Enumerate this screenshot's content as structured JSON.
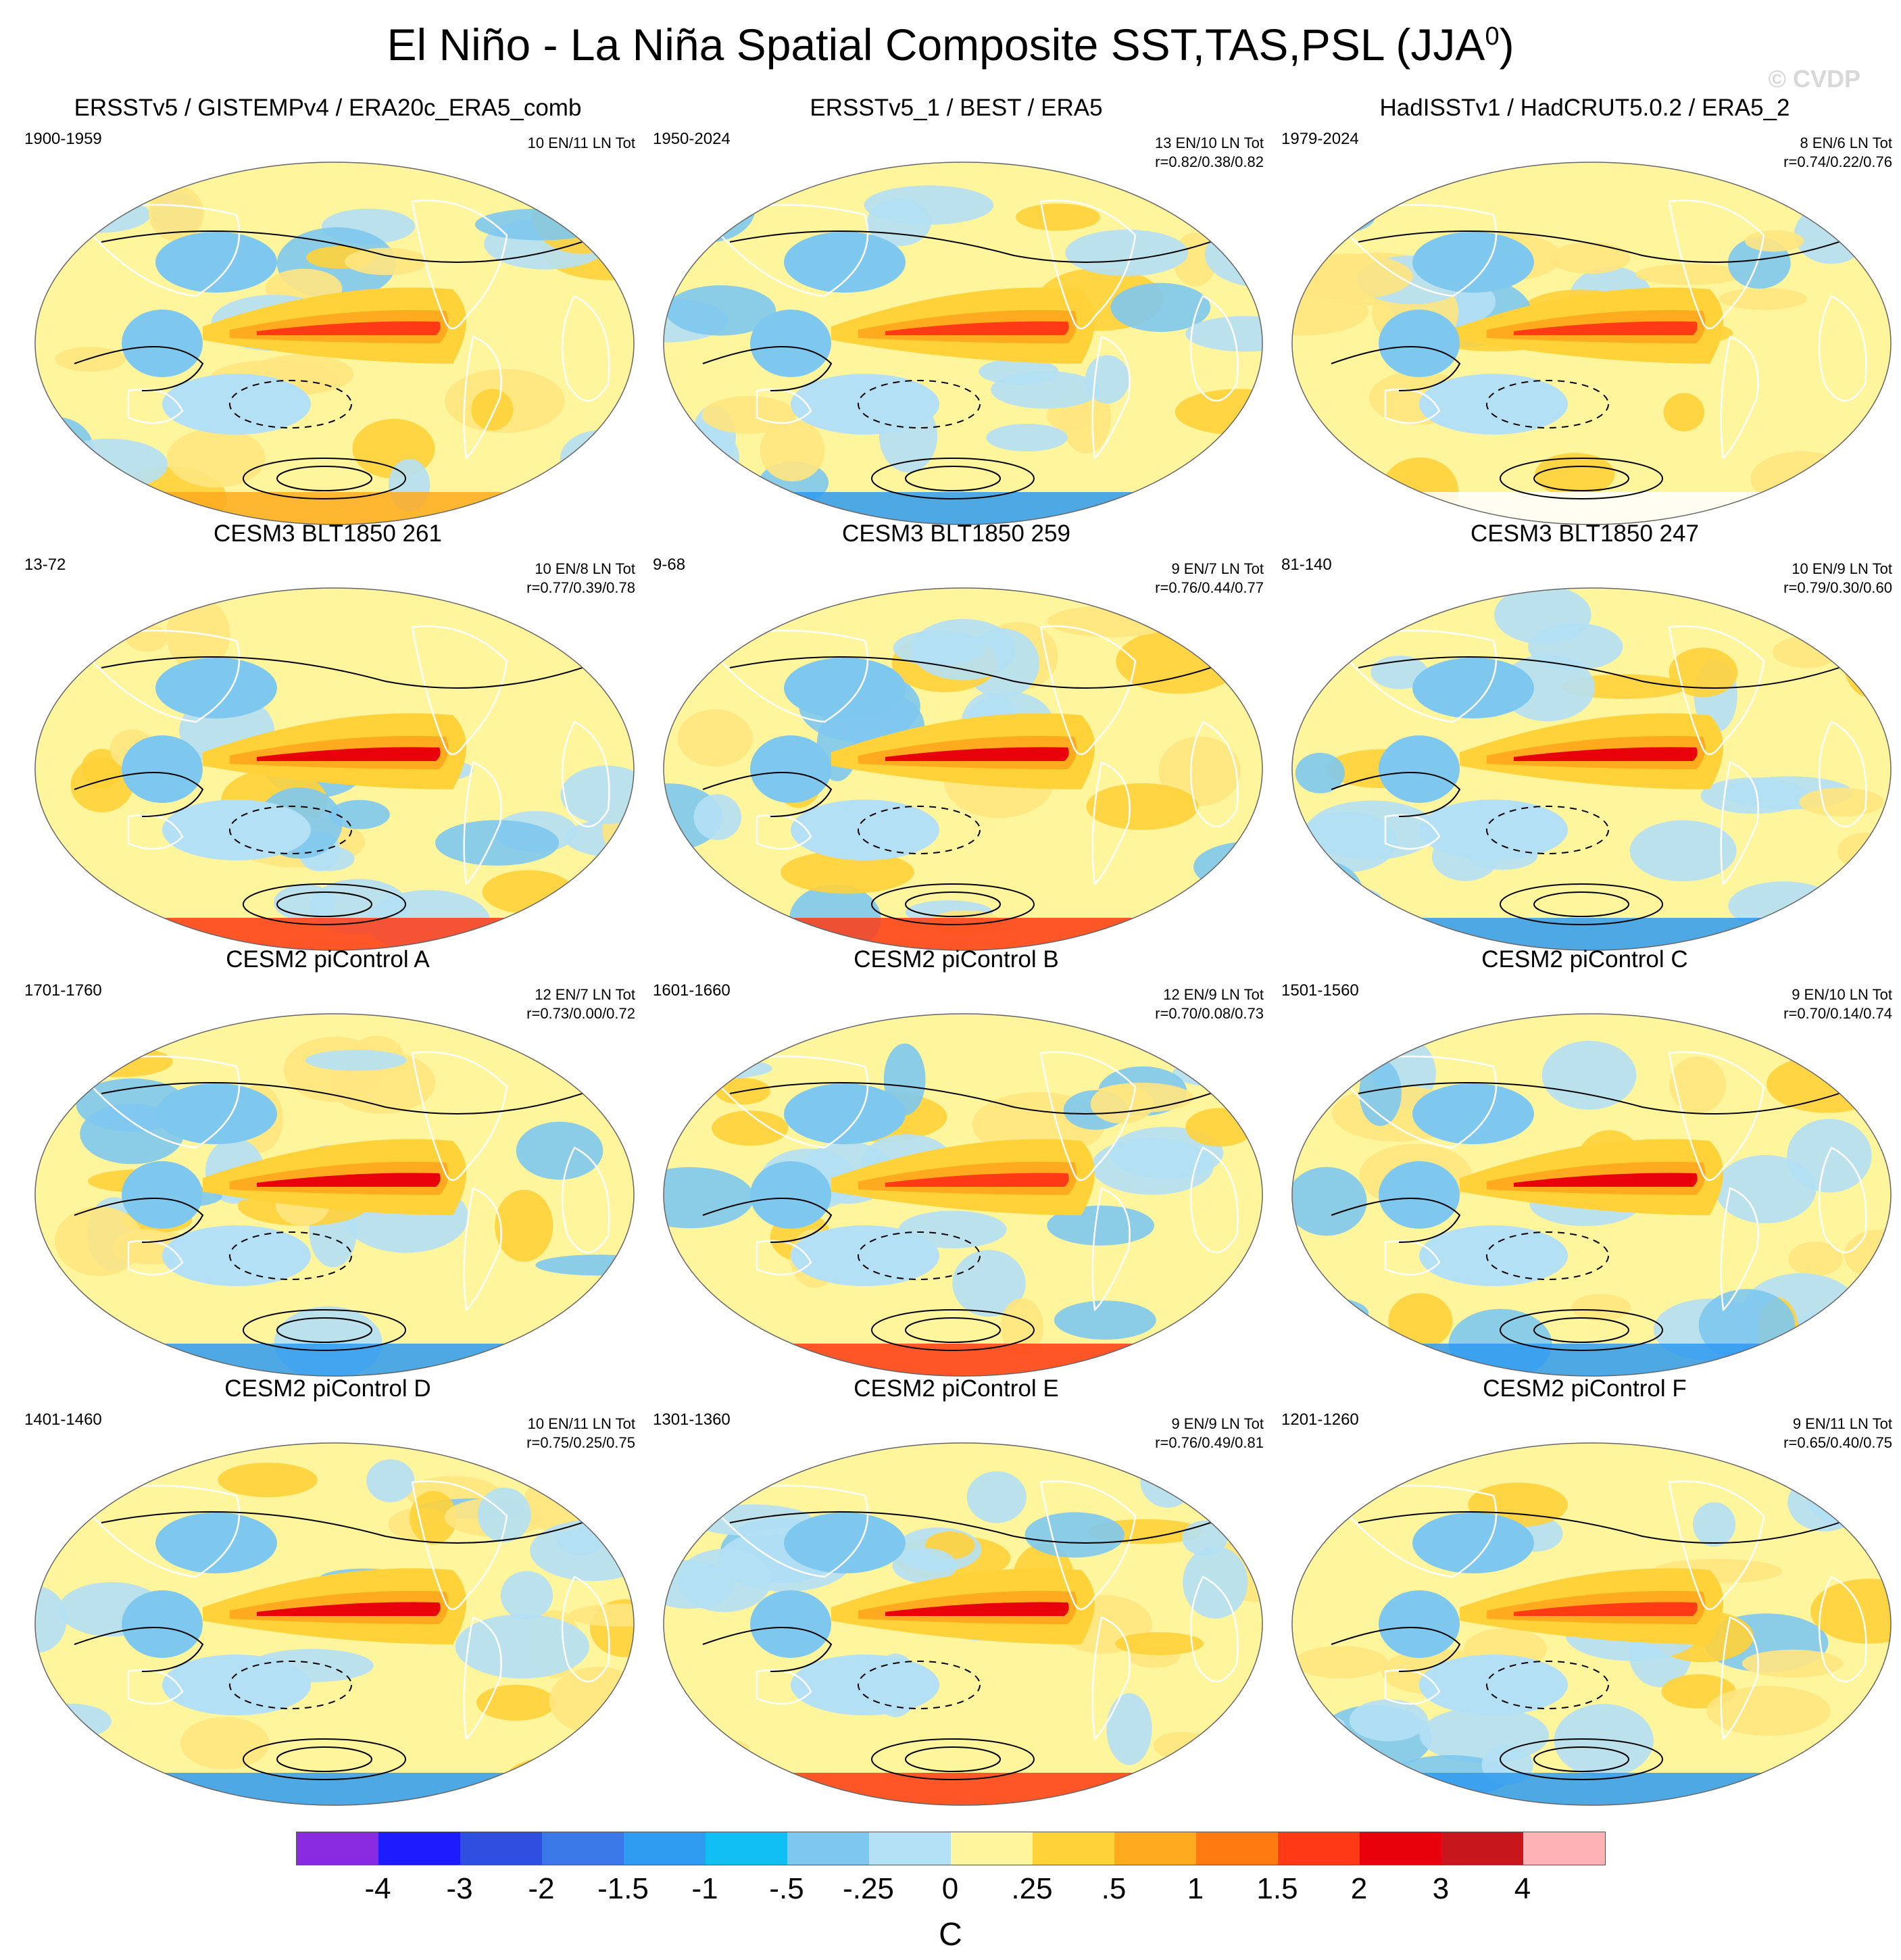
{
  "figure": {
    "title": "El Niño - La Niña Spatial Composite SST,TAS,PSL (JJA",
    "title_sup": "0",
    "title_close": ")",
    "watermark": "© CVDP"
  },
  "panels": [
    {
      "title": "ERSSTv5 / GISTEMPv4 / ERA20c_ERA5_comb",
      "period": "1900-1959",
      "counts": "10 EN/11 LN Tot",
      "r": "",
      "polar_band": "mixed",
      "nino_strength": 0.75
    },
    {
      "title": "ERSSTv5_1 / BEST / ERA5",
      "period": "1950-2024",
      "counts": "13 EN/10 LN Tot",
      "r": "r=0.82/0.38/0.82",
      "polar_band": "cool",
      "nino_strength": 0.8
    },
    {
      "title": "HadISSTv1 / HadCRUT5.0.2 / ERA5_2",
      "period": "1979-2024",
      "counts": "8 EN/6 LN Tot",
      "r": "r=0.74/0.22/0.76",
      "polar_band": "white",
      "nino_strength": 0.85
    },
    {
      "title": "CESM3 BLT1850 261",
      "period": "13-72",
      "counts": "10 EN/8 LN Tot",
      "r": "r=0.77/0.39/0.78",
      "polar_band": "warm",
      "nino_strength": 1.0
    },
    {
      "title": "CESM3 BLT1850 259",
      "period": "9-68",
      "counts": "9 EN/7 LN Tot",
      "r": "r=0.76/0.44/0.77",
      "polar_band": "warm",
      "nino_strength": 1.0
    },
    {
      "title": "CESM3 BLT1850 247",
      "period": "81-140",
      "counts": "10 EN/9 LN Tot",
      "r": "r=0.79/0.30/0.60",
      "polar_band": "cool",
      "nino_strength": 1.0
    },
    {
      "title": "CESM2 piControl A",
      "period": "1701-1760",
      "counts": "12 EN/7 LN Tot",
      "r": "r=0.73/0.00/0.72",
      "polar_band": "cool",
      "nino_strength": 0.95
    },
    {
      "title": "CESM2 piControl B",
      "period": "1601-1660",
      "counts": "12 EN/9 LN Tot",
      "r": "r=0.70/0.08/0.73",
      "polar_band": "warm",
      "nino_strength": 0.9
    },
    {
      "title": "CESM2 piControl C",
      "period": "1501-1560",
      "counts": "9 EN/10 LN Tot",
      "r": "r=0.70/0.14/0.74",
      "polar_band": "cool",
      "nino_strength": 1.0
    },
    {
      "title": "CESM2 piControl D",
      "period": "1401-1460",
      "counts": "10 EN/11 LN Tot",
      "r": "r=0.75/0.25/0.75",
      "polar_band": "cool",
      "nino_strength": 0.95
    },
    {
      "title": "CESM2 piControl E",
      "period": "1301-1360",
      "counts": "9 EN/9 LN Tot",
      "r": "r=0.76/0.49/0.81",
      "polar_band": "warm",
      "nino_strength": 1.0
    },
    {
      "title": "CESM2 piControl F",
      "period": "1201-1260",
      "counts": "9 EN/11 LN Tot",
      "r": "r=0.65/0.40/0.75",
      "polar_band": "cool",
      "nino_strength": 0.9
    }
  ],
  "colorbar": {
    "colors": [
      "#8a2be2",
      "#1c1cff",
      "#2f4fe0",
      "#3a78e8",
      "#2e9af0",
      "#12bff5",
      "#7ec8f0",
      "#b4e0f5",
      "#fff59d",
      "#ffd23a",
      "#ffaa1f",
      "#ff7b11",
      "#ff3a14",
      "#e8000b",
      "#c8171c",
      "#ffb2b6"
    ],
    "labels": [
      "-4",
      "-3",
      "-2",
      "-1.5",
      "-1",
      "-.5",
      "-.25",
      "0",
      ".25",
      ".5",
      "1",
      "1.5",
      "2",
      "3",
      "4"
    ],
    "units": "C"
  }
}
